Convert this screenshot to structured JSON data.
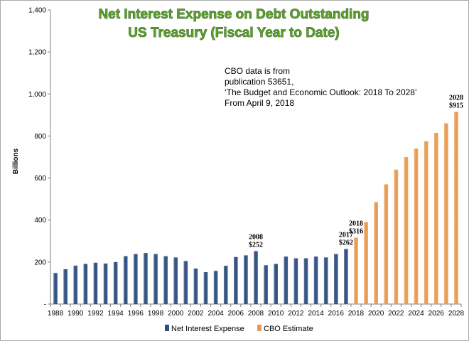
{
  "chart_data": {
    "type": "bar",
    "title_lines": [
      "Net Interest Expense on Debt Outstanding",
      "US Treasury (Fiscal Year to Date)"
    ],
    "ylabel": "Billions",
    "xlabel": "",
    "ylim": [
      0,
      1400
    ],
    "yticks": [
      "-",
      "200",
      "400",
      "600",
      "800",
      "1,000",
      "1,200",
      "1,400"
    ],
    "ytick_values": [
      0,
      200,
      400,
      600,
      800,
      1000,
      1200,
      1400
    ],
    "xtick_labels": [
      "1988",
      "1990",
      "1992",
      "1994",
      "1996",
      "1998",
      "2000",
      "2002",
      "2004",
      "2006",
      "2008",
      "2010",
      "2012",
      "2014",
      "2016",
      "2018",
      "2020",
      "2022",
      "2024",
      "2026",
      "2028"
    ],
    "categories": [
      "1988",
      "1989",
      "1990",
      "1991",
      "1992",
      "1993",
      "1994",
      "1995",
      "1996",
      "1997",
      "1998",
      "1999",
      "2000",
      "2001",
      "2002",
      "2003",
      "2004",
      "2005",
      "2006",
      "2007",
      "2008",
      "2009",
      "2010",
      "2011",
      "2012",
      "2013",
      "2014",
      "2015",
      "2016",
      "2017",
      "2018",
      "2019",
      "2020",
      "2021",
      "2022",
      "2023",
      "2024",
      "2025",
      "2026",
      "2027",
      "2028"
    ],
    "series": [
      {
        "name": "Net Interest Expense",
        "color": "#2e4f80",
        "values": [
          148,
          166,
          183,
          191,
          197,
          193,
          200,
          228,
          238,
          243,
          238,
          228,
          222,
          205,
          169,
          152,
          158,
          182,
          224,
          232,
          252,
          185,
          191,
          226,
          218,
          218,
          226,
          222,
          238,
          262,
          null,
          null,
          null,
          null,
          null,
          null,
          null,
          null,
          null,
          null,
          null
        ]
      },
      {
        "name": "CBO Estimate",
        "color": "#e89a4f",
        "values": [
          null,
          null,
          null,
          null,
          null,
          null,
          null,
          null,
          null,
          null,
          null,
          null,
          null,
          null,
          null,
          null,
          null,
          null,
          null,
          null,
          null,
          null,
          null,
          null,
          null,
          null,
          null,
          null,
          null,
          null,
          316,
          390,
          485,
          570,
          640,
          700,
          740,
          775,
          815,
          860,
          915
        ]
      }
    ],
    "annotations": [
      {
        "category": "2008",
        "year": "2008",
        "value": "$252"
      },
      {
        "category": "2017",
        "year": "2017",
        "value": "$262"
      },
      {
        "category": "2018",
        "year": "2018",
        "value": "$316"
      },
      {
        "category": "2028",
        "year": "2028",
        "value": "$915"
      }
    ],
    "note_lines": [
      "CBO data is from",
      "publication 53651,",
      "‘The Budget and Economic Outlook: 2018 To 2028’",
      "From April 9, 2018"
    ],
    "legend_position": "bottom",
    "grid": false
  }
}
